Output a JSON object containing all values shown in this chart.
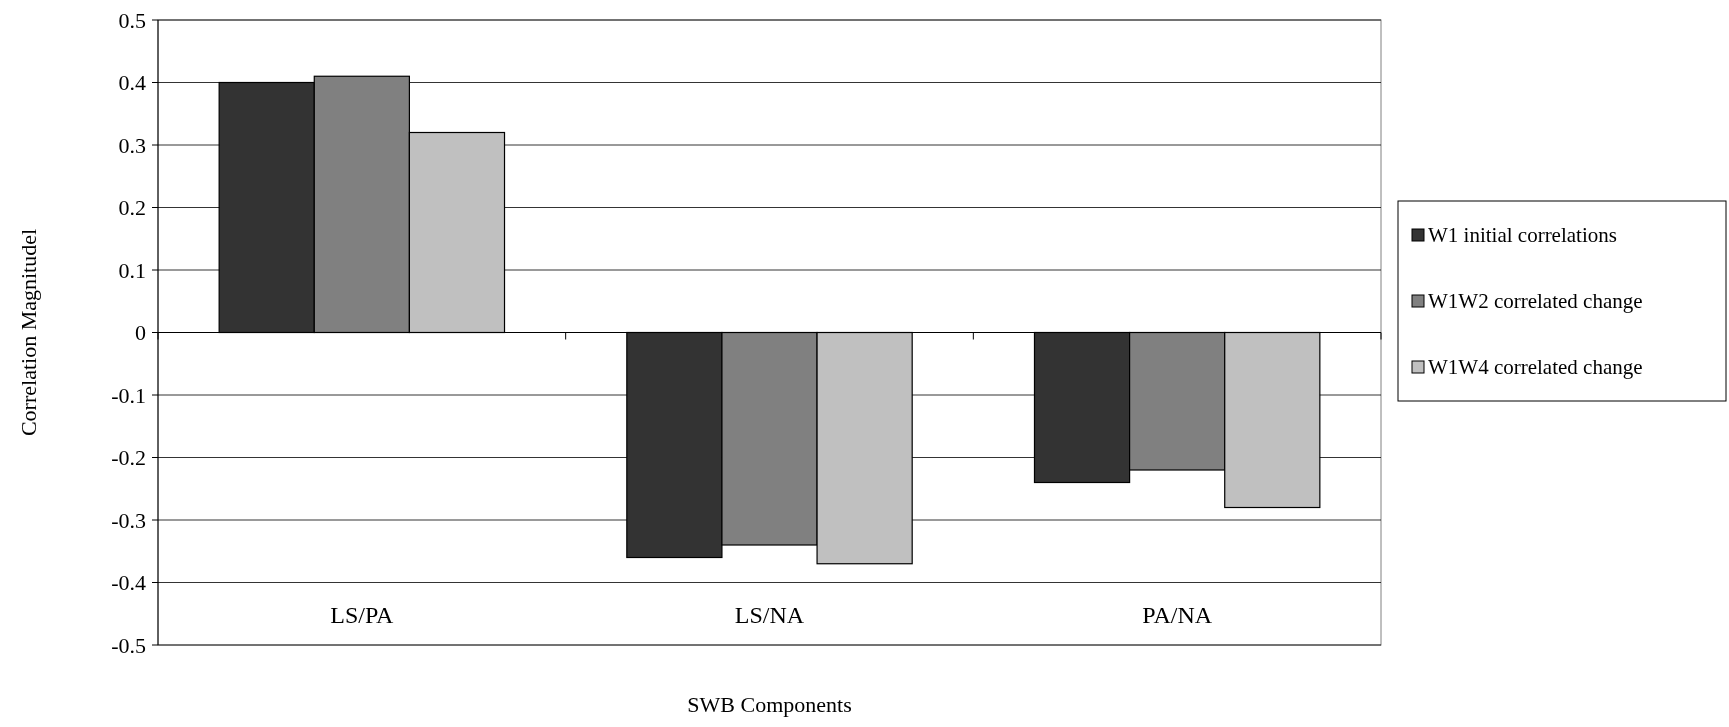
{
  "chart_data": {
    "type": "bar",
    "xlabel": "SWB Components",
    "ylabel": "Correlation Magnitudel",
    "categories": [
      "LS/PA",
      "LS/NA",
      "PA/NA"
    ],
    "series": [
      {
        "name": "W1 initial correlations",
        "color": "#333333",
        "values": [
          0.4,
          -0.36,
          -0.24
        ]
      },
      {
        "name": "W1W2 correlated change",
        "color": "#808080",
        "values": [
          0.41,
          -0.34,
          -0.22
        ]
      },
      {
        "name": "W1W4 correlated change",
        "color": "#c0c0c0",
        "values": [
          0.32,
          -0.37,
          -0.28
        ]
      }
    ],
    "ylim": [
      -0.5,
      0.5
    ],
    "yticks": [
      -0.5,
      -0.4,
      -0.3,
      -0.2,
      -0.1,
      0,
      0.1,
      0.2,
      0.3,
      0.4,
      0.5
    ],
    "grid": "y",
    "legend": "right"
  }
}
